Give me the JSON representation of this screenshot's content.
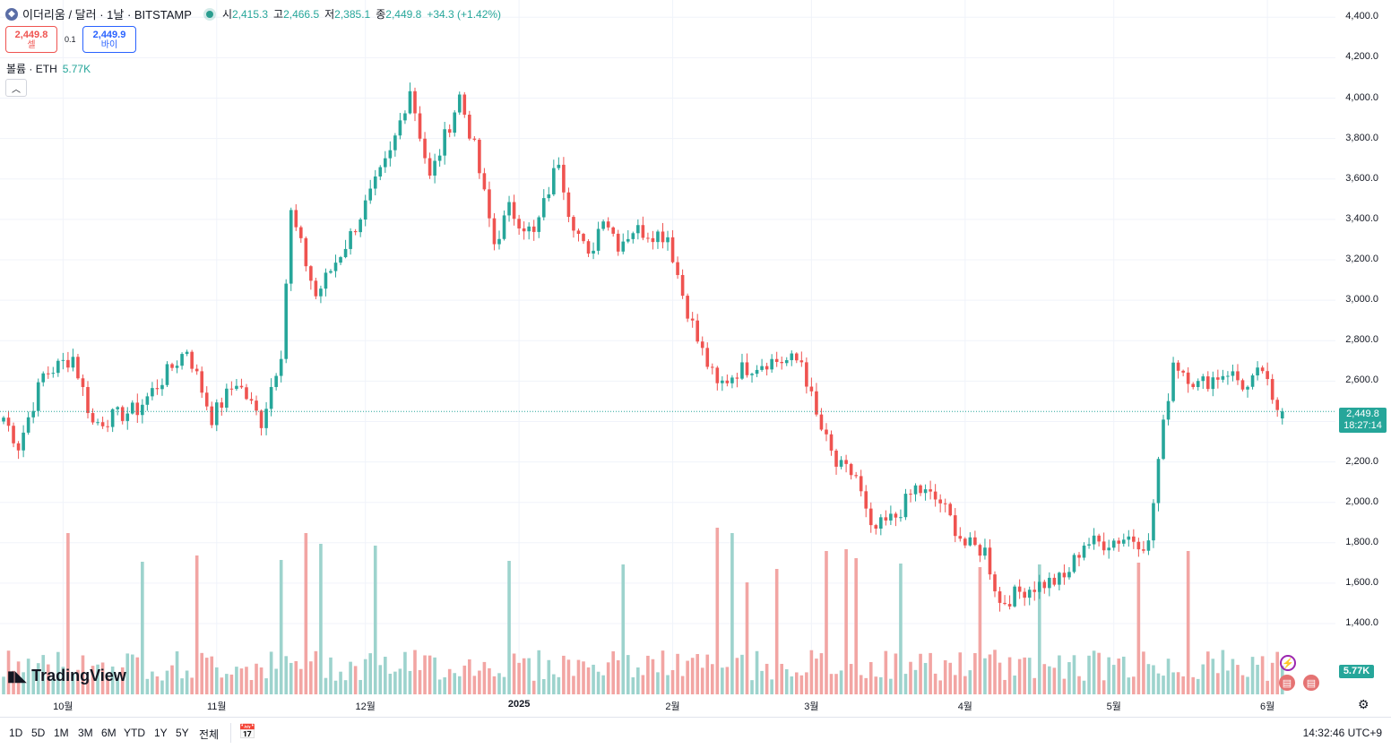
{
  "header": {
    "symbol": "이더리움 / 달러 · 1날 · BITSTAMP",
    "coin_icon": "ethereum-icon",
    "open_label": "시",
    "open": "2,415.3",
    "high_label": "고",
    "high": "2,466.5",
    "low_label": "저",
    "low": "2,385.1",
    "close_label": "종",
    "close": "2,449.8",
    "change": "+34.3 (+1.42%)"
  },
  "trade": {
    "sell_price": "2,449.8",
    "sell_label": "셀",
    "spread": "0.1",
    "buy_price": "2,449.9",
    "buy_label": "바이"
  },
  "volume_legend": {
    "label": "볼륨 · ETH",
    "value": "5.77K"
  },
  "collapse_icon": "chevron-up-icon",
  "price_label": {
    "price": "2,449.8",
    "countdown": "18:27:14"
  },
  "volume_label": "5.77K",
  "logo": "TradingView",
  "timeframes": [
    "1D",
    "5D",
    "1M",
    "3M",
    "6M",
    "YTD",
    "1Y",
    "5Y",
    "전체"
  ],
  "time": "14:32:46 UTC+9",
  "colors": {
    "up": "#26a69a",
    "down": "#ef5350",
    "up_vol": "#9dd3cd",
    "down_vol": "#f2a5a3"
  },
  "chart_data": {
    "type": "candlestick",
    "ylim": [
      1050,
      4450
    ],
    "y_ticks": [
      "4,400.0",
      "4,200.0",
      "4,000.0",
      "3,800.0",
      "3,600.0",
      "3,400.0",
      "3,200.0",
      "3,000.0",
      "2,800.0",
      "2,600.0",
      "2,400.0",
      "2,200.0",
      "2,000.0",
      "1,800.0",
      "1,600.0",
      "1,400.0"
    ],
    "x_ticks": [
      {
        "label": "10월",
        "day": 12,
        "bold": false
      },
      {
        "label": "11월",
        "day": 43,
        "bold": false
      },
      {
        "label": "12월",
        "day": 73,
        "bold": false
      },
      {
        "label": "2025",
        "day": 104,
        "bold": true
      },
      {
        "label": "2월",
        "day": 135,
        "bold": false
      },
      {
        "label": "3월",
        "day": 163,
        "bold": false
      },
      {
        "label": "4월",
        "day": 194,
        "bold": false
      },
      {
        "label": "5월",
        "day": 224,
        "bold": false
      },
      {
        "label": "6월",
        "day": 255,
        "bold": false
      }
    ],
    "anchors": [
      [
        0,
        2420
      ],
      [
        3,
        2280
      ],
      [
        8,
        2630
      ],
      [
        14,
        2720
      ],
      [
        18,
        2390
      ],
      [
        27,
        2460
      ],
      [
        37,
        2760
      ],
      [
        42,
        2420
      ],
      [
        47,
        2600
      ],
      [
        52,
        2400
      ],
      [
        56,
        2750
      ],
      [
        58,
        3430
      ],
      [
        63,
        3020
      ],
      [
        70,
        3320
      ],
      [
        78,
        3720
      ],
      [
        82,
        4050
      ],
      [
        86,
        3600
      ],
      [
        92,
        4010
      ],
      [
        95,
        3750
      ],
      [
        99,
        3280
      ],
      [
        102,
        3450
      ],
      [
        107,
        3320
      ],
      [
        112,
        3700
      ],
      [
        114,
        3450
      ],
      [
        118,
        3200
      ],
      [
        121,
        3430
      ],
      [
        124,
        3280
      ],
      [
        127,
        3350
      ],
      [
        134,
        3320
      ],
      [
        137,
        3030
      ],
      [
        140,
        2800
      ],
      [
        144,
        2570
      ],
      [
        148,
        2650
      ],
      [
        154,
        2700
      ],
      [
        161,
        2700
      ],
      [
        164,
        2420
      ],
      [
        168,
        2180
      ],
      [
        172,
        2130
      ],
      [
        175,
        1850
      ],
      [
        180,
        1930
      ],
      [
        184,
        2070
      ],
      [
        189,
        2000
      ],
      [
        194,
        1790
      ],
      [
        198,
        1760
      ],
      [
        201,
        1500
      ],
      [
        206,
        1570
      ],
      [
        210,
        1600
      ],
      [
        214,
        1620
      ],
      [
        218,
        1800
      ],
      [
        222,
        1800
      ],
      [
        227,
        1830
      ],
      [
        231,
        1790
      ],
      [
        233,
        2210
      ],
      [
        236,
        2700
      ],
      [
        241,
        2580
      ],
      [
        247,
        2650
      ],
      [
        251,
        2560
      ],
      [
        254,
        2660
      ],
      [
        256,
        2480
      ],
      [
        258,
        2449.8
      ]
    ],
    "volume_peaks": [
      [
        13,
        1800
      ],
      [
        28,
        1480
      ],
      [
        39,
        1550
      ],
      [
        56,
        1500
      ],
      [
        61,
        1800
      ],
      [
        64,
        1680
      ],
      [
        75,
        1660
      ],
      [
        102,
        1490
      ],
      [
        125,
        1450
      ],
      [
        144,
        1860
      ],
      [
        147,
        1800
      ],
      [
        150,
        1250
      ],
      [
        156,
        1400
      ],
      [
        166,
        1600
      ],
      [
        170,
        1620
      ],
      [
        172,
        1520
      ],
      [
        181,
        1460
      ],
      [
        197,
        1420
      ],
      [
        209,
        1450
      ],
      [
        229,
        1470
      ],
      [
        239,
        1600
      ]
    ]
  }
}
